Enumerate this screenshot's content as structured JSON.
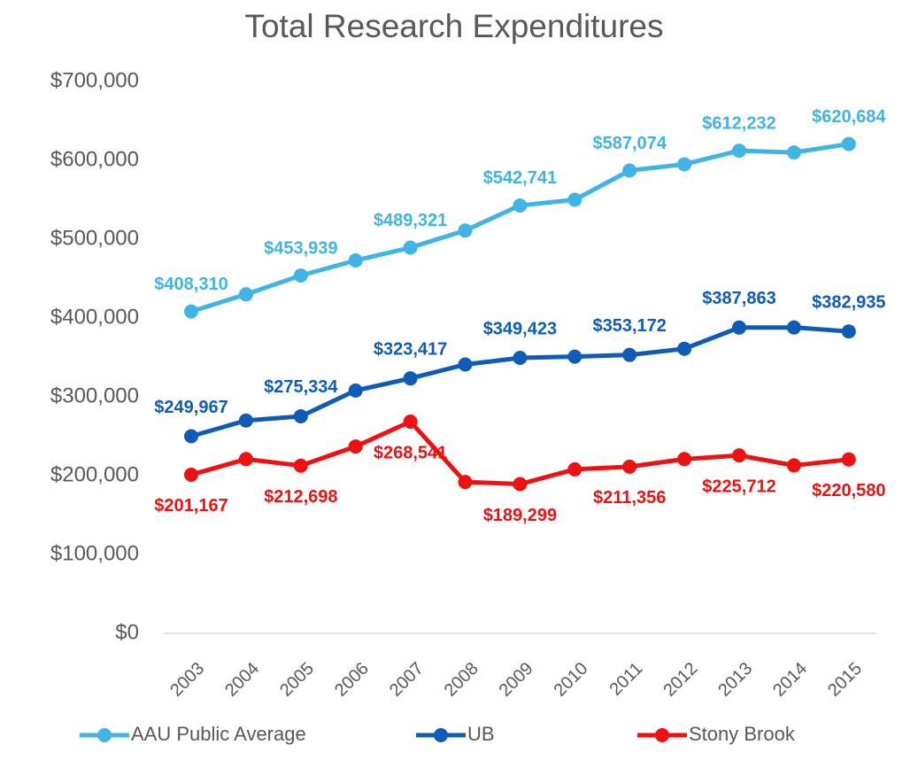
{
  "chart_data": {
    "type": "line",
    "title": "Total Research Expenditures",
    "categories": [
      "2003",
      "2004",
      "2005",
      "2006",
      "2007",
      "2008",
      "2009",
      "2010",
      "2011",
      "2012",
      "2013",
      "2014",
      "2015"
    ],
    "series": [
      {
        "name": "AAU Public Average",
        "color": "#41b4e6",
        "values": [
          408310,
          430000,
          453939,
          473000,
          489321,
          511000,
          542741,
          550000,
          587074,
          595000,
          612232,
          610000,
          620684
        ],
        "value_labels": [
          "$408,310",
          null,
          "$453,939",
          null,
          "$489,321",
          null,
          "$542,741",
          null,
          "$587,074",
          null,
          "$612,232",
          null,
          "$620,684"
        ]
      },
      {
        "name": "UB",
        "color": "#0f5cb8",
        "values": [
          249967,
          270000,
          275334,
          308000,
          323417,
          341000,
          349423,
          351000,
          353172,
          361000,
          387863,
          388000,
          382935
        ],
        "value_labels": [
          "$249,967",
          null,
          "$275,334",
          null,
          "$323,417",
          null,
          "$349,423",
          null,
          "$353,172",
          null,
          "$387,863",
          null,
          "$382,935"
        ]
      },
      {
        "name": "Stony Brook",
        "color": "#ee1111",
        "values": [
          201167,
          221000,
          212698,
          237000,
          268541,
          192000,
          189299,
          208000,
          211356,
          221000,
          225712,
          213000,
          220580
        ],
        "value_labels": [
          "$201,167",
          null,
          "$212,698",
          null,
          "$268,541",
          null,
          "$189,299",
          null,
          "$211,356",
          null,
          "$225,712",
          null,
          "$220,580"
        ]
      }
    ],
    "ylim": [
      0,
      700000
    ],
    "yticks": [
      {
        "value": 0,
        "label": "$0"
      },
      {
        "value": 100000,
        "label": "$100,000"
      },
      {
        "value": 200000,
        "label": "$200,000"
      },
      {
        "value": 300000,
        "label": "$300,000"
      },
      {
        "value": 400000,
        "label": "$400,000"
      },
      {
        "value": 500000,
        "label": "$500,000"
      },
      {
        "value": 600000,
        "label": "$600,000"
      },
      {
        "value": 700000,
        "label": "$700,000"
      }
    ],
    "grid": false,
    "legend": "bottom"
  }
}
